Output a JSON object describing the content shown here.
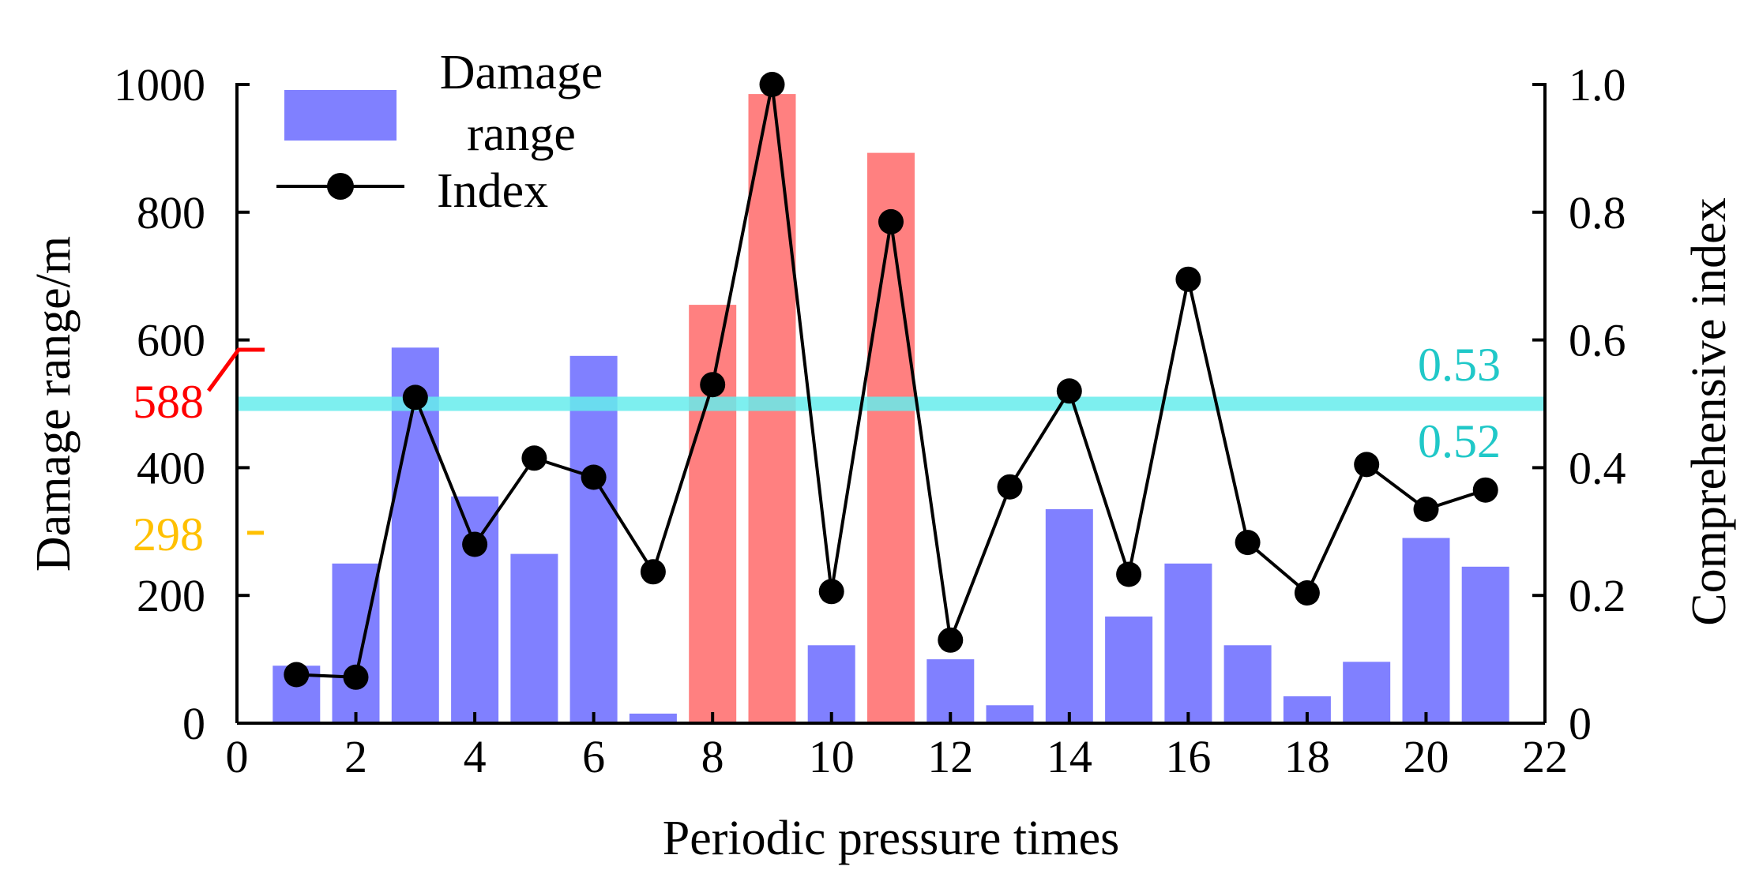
{
  "chart_data": {
    "type": "bar+line",
    "xlabel": "Periodic pressure times",
    "ylabel_left": "Damage range/m",
    "ylabel_right": "Comprehensive index",
    "xlim": [
      0,
      22
    ],
    "ylim_left": [
      0,
      1000
    ],
    "ylim_right": [
      0,
      1.0
    ],
    "x_ticks": [
      "0",
      "2",
      "4",
      "6",
      "8",
      "10",
      "12",
      "14",
      "16",
      "18",
      "20",
      "22"
    ],
    "y_left_ticks": [
      "0",
      "200",
      "400",
      "600",
      "800",
      "1000"
    ],
    "y_right_ticks": [
      "0",
      "0.2",
      "0.4",
      "0.6",
      "0.8",
      "1.0"
    ],
    "legend": {
      "bar_label": "Damage\nrange",
      "line_label": "Index",
      "placement": "top-left"
    },
    "categories": [
      1,
      2,
      3,
      4,
      5,
      6,
      7,
      8,
      9,
      10,
      11,
      12,
      13,
      14,
      15,
      16,
      17,
      18,
      19,
      20,
      21
    ],
    "series": [
      {
        "name": "Damage range",
        "kind": "bar",
        "axis": "left",
        "values": [
          90,
          250,
          588,
          355,
          265,
          575,
          15,
          655,
          985,
          122,
          893,
          100,
          28,
          335,
          167,
          250,
          122,
          42,
          96,
          290,
          245
        ],
        "highlighted": [
          false,
          false,
          false,
          false,
          false,
          false,
          false,
          true,
          true,
          false,
          true,
          false,
          false,
          false,
          false,
          false,
          false,
          false,
          false,
          false,
          false
        ]
      },
      {
        "name": "Index",
        "kind": "line",
        "axis": "right",
        "values": [
          0.076,
          0.072,
          0.51,
          0.28,
          0.415,
          0.385,
          0.237,
          0.53,
          1.0,
          0.206,
          0.785,
          0.13,
          0.37,
          0.52,
          0.233,
          0.695,
          0.283,
          0.204,
          0.405,
          0.335,
          0.365
        ]
      }
    ],
    "annotations": [
      {
        "text": "588",
        "axis": "left",
        "value": 588,
        "color": "#ff0000"
      },
      {
        "text": "298",
        "axis": "left",
        "value": 298,
        "color": "#ffc000"
      },
      {
        "text": "0.53",
        "axis": "right",
        "value": 0.53,
        "color": "#20c8c8"
      },
      {
        "text": "0.52",
        "axis": "right",
        "value": 0.52,
        "color": "#20c8c8"
      }
    ],
    "threshold_line": {
      "axis": "right",
      "value": 0.5,
      "color": "#66ecec"
    },
    "colors": {
      "bar": "#8080ff",
      "bar_highlight": "#ff8080",
      "line": "#000000"
    }
  }
}
